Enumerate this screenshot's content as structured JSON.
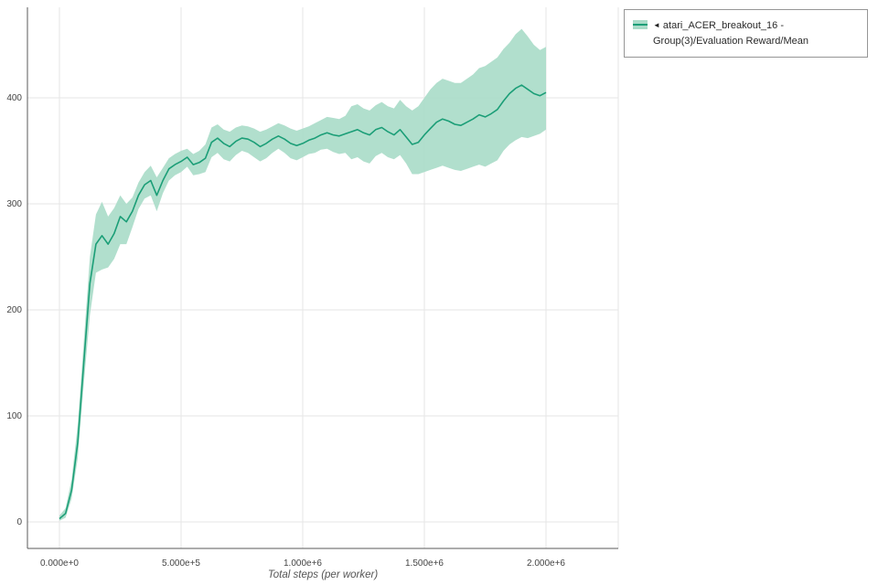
{
  "colors": {
    "line": "#1b9e77",
    "band": "#a9dbc8",
    "grid": "#e6e6e6",
    "axis": "#5a5a5a",
    "text": "#444444"
  },
  "legend": {
    "arrow": "◄",
    "label": "atari_ACER_breakout_16 - Group(3)/Evaluation Reward/Mean"
  },
  "axes": {
    "x_label": "Total steps (per worker)",
    "x_tick_labels": [
      "0.000e+0",
      "5.000e+5",
      "1.000e+6",
      "1.500e+6",
      "2.000e+6"
    ],
    "y_tick_labels": [
      "0",
      "100",
      "200",
      "300",
      "400"
    ]
  },
  "chart_data": {
    "type": "line",
    "title": "",
    "xlabel": "Total steps (per worker)",
    "ylabel": "",
    "xlim": [
      0,
      2300000
    ],
    "ylim": [
      0,
      485
    ],
    "grid": true,
    "legend_position": "outside-top-right",
    "x_tick_values": [
      0,
      500000,
      1000000,
      1500000,
      2000000
    ],
    "y_tick_values": [
      0,
      100,
      200,
      300,
      400
    ],
    "series": [
      {
        "name": "atari_ACER_breakout_16 - Group(3)/Evaluation Reward/Mean",
        "color": "#1b9e77",
        "band_color": "#a9dbc8",
        "x": [
          0,
          25000,
          50000,
          75000,
          100000,
          125000,
          150000,
          175000,
          200000,
          225000,
          250000,
          275000,
          300000,
          325000,
          350000,
          375000,
          400000,
          425000,
          450000,
          475000,
          500000,
          525000,
          550000,
          575000,
          600000,
          625000,
          650000,
          675000,
          700000,
          725000,
          750000,
          775000,
          800000,
          825000,
          850000,
          875000,
          900000,
          925000,
          950000,
          975000,
          1000000,
          1025000,
          1050000,
          1075000,
          1100000,
          1125000,
          1150000,
          1175000,
          1200000,
          1225000,
          1250000,
          1275000,
          1300000,
          1325000,
          1350000,
          1375000,
          1400000,
          1425000,
          1450000,
          1475000,
          1500000,
          1525000,
          1550000,
          1575000,
          1600000,
          1625000,
          1650000,
          1675000,
          1700000,
          1725000,
          1750000,
          1775000,
          1800000,
          1825000,
          1850000,
          1875000,
          1900000,
          1925000,
          1950000,
          1975000,
          2000000
        ],
        "mean": [
          3,
          8,
          30,
          75,
          150,
          225,
          262,
          270,
          262,
          272,
          288,
          283,
          293,
          308,
          318,
          322,
          308,
          322,
          333,
          337,
          340,
          344,
          337,
          339,
          343,
          358,
          362,
          357,
          354,
          359,
          362,
          361,
          358,
          354,
          357,
          361,
          364,
          361,
          357,
          355,
          357,
          360,
          362,
          365,
          367,
          365,
          364,
          366,
          368,
          370,
          367,
          365,
          370,
          372,
          368,
          365,
          370,
          363,
          356,
          358,
          365,
          371,
          377,
          380,
          378,
          375,
          374,
          377,
          380,
          384,
          382,
          385,
          389,
          397,
          404,
          409,
          412,
          408,
          404,
          402,
          405
        ],
        "lower": [
          1,
          4,
          22,
          60,
          130,
          195,
          235,
          238,
          240,
          248,
          262,
          262,
          278,
          295,
          305,
          308,
          293,
          310,
          322,
          327,
          330,
          335,
          327,
          328,
          330,
          344,
          348,
          342,
          340,
          346,
          350,
          348,
          344,
          340,
          343,
          348,
          352,
          348,
          343,
          341,
          344,
          347,
          348,
          351,
          352,
          349,
          347,
          348,
          342,
          344,
          340,
          338,
          345,
          348,
          344,
          342,
          346,
          338,
          328,
          328,
          330,
          332,
          334,
          336,
          334,
          332,
          331,
          333,
          335,
          337,
          335,
          338,
          341,
          350,
          356,
          360,
          363,
          362,
          364,
          366,
          370
        ],
        "upper": [
          6,
          13,
          40,
          92,
          170,
          250,
          290,
          302,
          288,
          296,
          308,
          300,
          306,
          320,
          330,
          336,
          325,
          334,
          343,
          347,
          350,
          352,
          347,
          350,
          356,
          372,
          375,
          370,
          368,
          372,
          374,
          373,
          371,
          368,
          370,
          373,
          376,
          374,
          371,
          369,
          371,
          373,
          376,
          379,
          382,
          381,
          380,
          383,
          392,
          394,
          390,
          388,
          393,
          396,
          392,
          390,
          398,
          392,
          388,
          392,
          400,
          408,
          414,
          418,
          416,
          414,
          414,
          418,
          422,
          428,
          430,
          434,
          438,
          446,
          452,
          460,
          465,
          458,
          450,
          445,
          448
        ]
      }
    ]
  }
}
